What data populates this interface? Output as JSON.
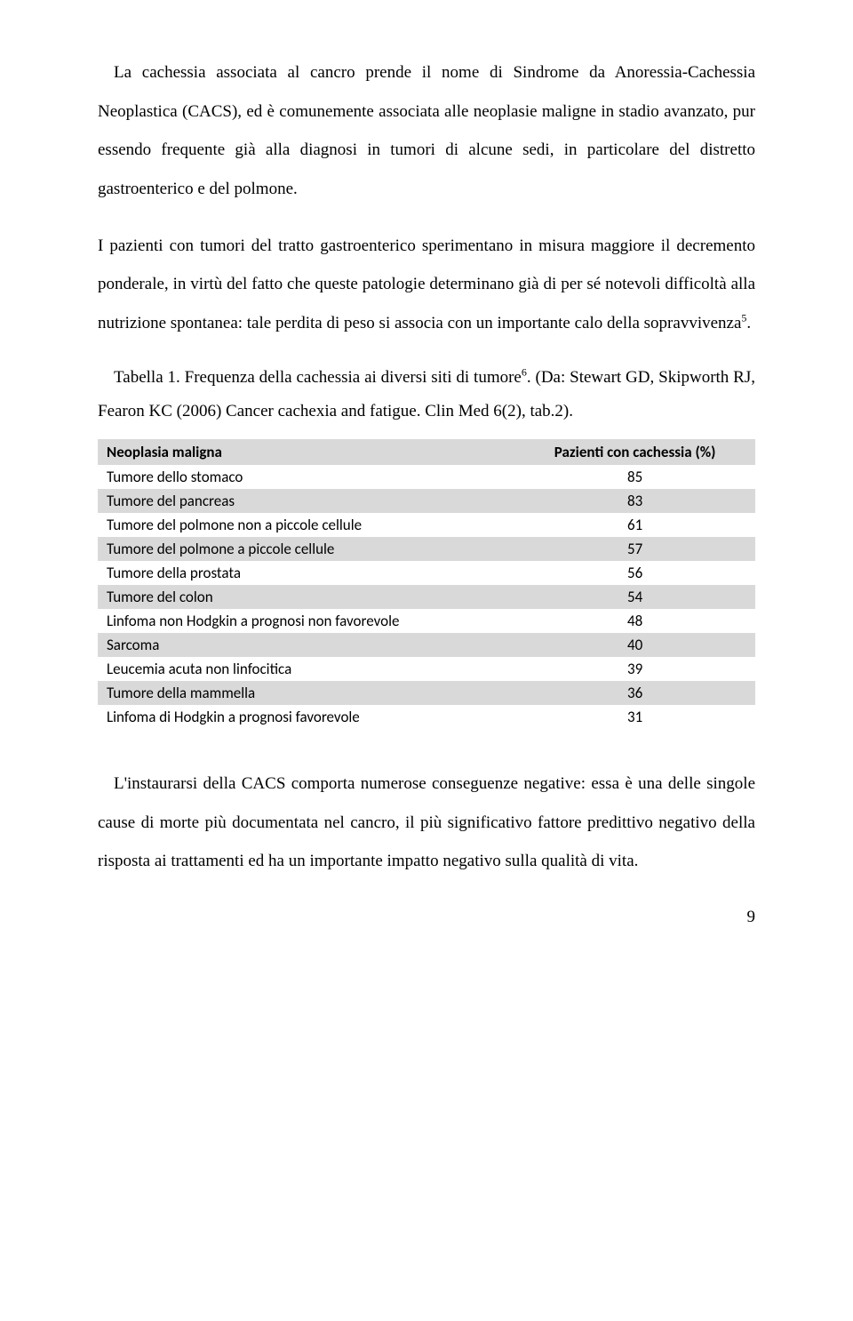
{
  "paragraphs": {
    "p1a": "La cachessia associata al cancro prende il nome di Sindrome da Anoressia-Cachessia Neoplastica (CACS), ed è comunemente associata alle neoplasie maligne in stadio avanzato, pur essendo frequente già alla diagnosi in tumori di alcune sedi, in particolare del distretto gastroenterico e del polmone.",
    "p1b": "I pazienti con tumori del tratto gastroenterico sperimentano in misura maggiore il decremento ponderale, in virtù del fatto che queste patologie determinano già di per sé notevoli difficoltà alla nutrizione spontanea: tale perdita di peso si associa con un importante calo della sopravvivenza",
    "p1b_super": "5",
    "p1b_end": ".",
    "caption_a": "Tabella 1. Frequenza della cachessia ai diversi siti di tumore",
    "caption_super": "6",
    "caption_b": ". (Da: Stewart  GD, Skipworth RJ, Fearon KC (2006) Cancer cachexia and fatigue. Clin Med 6(2), tab.2).",
    "p2": "L'instaurarsi della CACS comporta numerose conseguenze negative: essa è una delle singole cause di morte più documentata nel cancro, il più significativo fattore predittivo negativo della risposta ai trattamenti ed ha un importante impatto negativo sulla qualità di vita."
  },
  "table": {
    "font_family": "Calibri",
    "font_size_pt": 11,
    "header_bg": "#d9d9d9",
    "row_shade_bg": "#d9d9d9",
    "row_plain_bg": "#ffffff",
    "columns": [
      "Neoplasia maligna",
      "Pazienti con cachessia (%)"
    ],
    "rows": [
      {
        "label": "Tumore dello stomaco",
        "value": 85,
        "shade": false
      },
      {
        "label": "Tumore del pancreas",
        "value": 83,
        "shade": true
      },
      {
        "label": "Tumore del polmone non a piccole cellule",
        "value": 61,
        "shade": false
      },
      {
        "label": "Tumore del polmone a piccole cellule",
        "value": 57,
        "shade": true
      },
      {
        "label": "Tumore della prostata",
        "value": 56,
        "shade": false
      },
      {
        "label": "Tumore del colon",
        "value": 54,
        "shade": true
      },
      {
        "label": "Linfoma non Hodgkin a prognosi non favorevole",
        "value": 48,
        "shade": false
      },
      {
        "label": "Sarcoma",
        "value": 40,
        "shade": true
      },
      {
        "label": "Leucemia acuta non linfocitica",
        "value": 39,
        "shade": false
      },
      {
        "label": "Tumore della mammella",
        "value": 36,
        "shade": true
      },
      {
        "label": "Linfoma di Hodgkin a prognosi favorevole",
        "value": 31,
        "shade": false
      }
    ]
  },
  "style": {
    "body_font_family": "Times New Roman",
    "body_font_size_pt": 12,
    "line_height": 2.3,
    "text_color": "#000000",
    "background_color": "#ffffff"
  },
  "page_number": "9"
}
